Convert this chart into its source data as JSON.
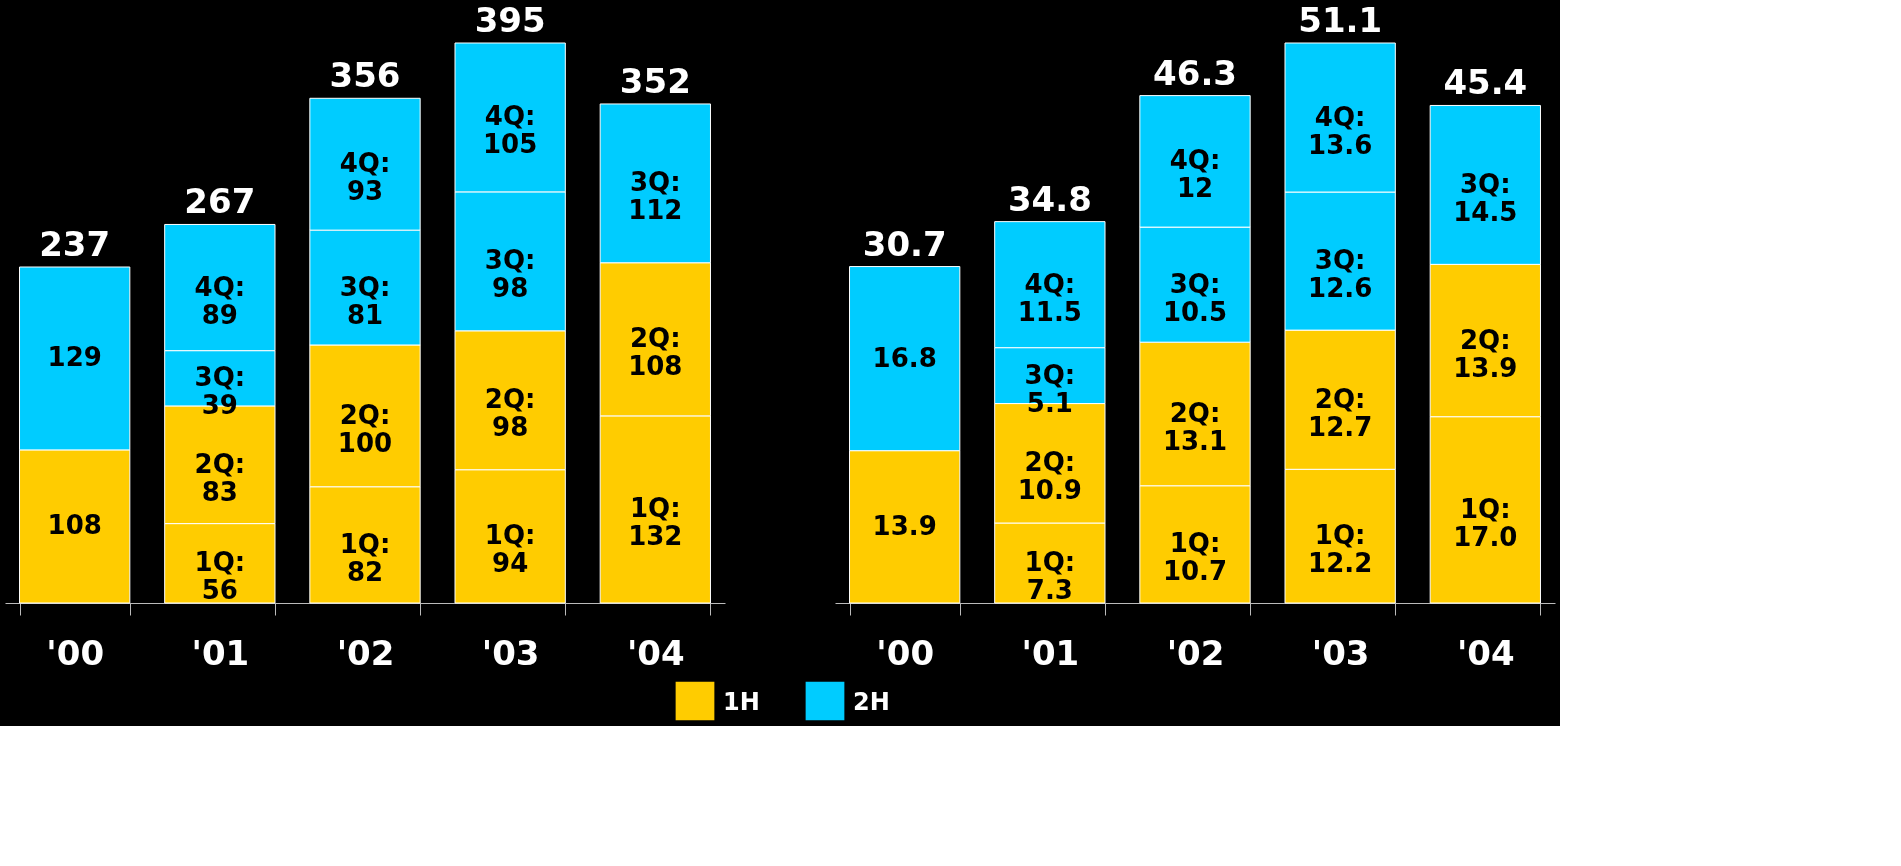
{
  "chart_data": [
    {
      "type": "bar",
      "stacked": true,
      "categories": [
        "'00",
        "'01",
        "'02",
        "'03",
        "'04"
      ],
      "legend": "bottom",
      "series": [
        {
          "name": "1H",
          "color": "#ffcc00",
          "values": [
            108,
            56,
            82,
            94,
            132
          ],
          "value_labels": [
            "108",
            "1Q: 56",
            "1Q: 82",
            "1Q: 94",
            "1Q: 132"
          ]
        },
        {
          "color": "#ffcc00",
          "values": [
            null,
            83,
            100,
            98,
            108
          ],
          "value_labels": [
            null,
            "2Q: 83",
            "2Q: 100",
            "2Q: 98",
            "2Q: 108"
          ]
        },
        {
          "name": "2H",
          "color": "#00ccff",
          "values": [
            129,
            39,
            81,
            98,
            112
          ],
          "value_labels": [
            "129",
            "3Q: 39",
            "3Q: 81",
            "3Q: 98",
            "3Q: 112"
          ]
        },
        {
          "color": "#00ccff",
          "values": [
            null,
            89,
            93,
            105,
            null
          ],
          "value_labels": [
            null,
            "4Q: 89",
            "4Q: 93",
            "4Q: 105",
            null
          ]
        }
      ],
      "totals": [
        "237",
        "267",
        "356",
        "395",
        "352"
      ]
    },
    {
      "type": "bar",
      "stacked": true,
      "categories": [
        "'00",
        "'01",
        "'02",
        "'03",
        "'04"
      ],
      "series": [
        {
          "color": "#ffcc00",
          "values": [
            13.9,
            7.3,
            10.7,
            12.2,
            17.0
          ],
          "value_labels": [
            "13.9",
            "1Q: 7.3",
            "1Q: 10.7",
            "1Q: 12.2",
            "1Q: 17.0"
          ]
        },
        {
          "color": "#ffcc00",
          "values": [
            null,
            10.9,
            13.1,
            12.7,
            13.9
          ],
          "value_labels": [
            null,
            "2Q: 10.9",
            "2Q: 13.1",
            "2Q: 12.7",
            "2Q: 13.9"
          ]
        },
        {
          "color": "#00ccff",
          "values": [
            16.8,
            5.1,
            10.5,
            12.6,
            14.5
          ],
          "value_labels": [
            "16.8",
            "3Q: 5.1",
            "3Q: 10.5",
            "3Q: 12.6",
            "3Q: 14.5"
          ]
        },
        {
          "color": "#00ccff",
          "values": [
            null,
            11.5,
            12,
            13.6,
            null
          ],
          "value_labels": [
            null,
            "4Q: 11.5",
            "4Q: 12",
            "4Q: 13.6",
            null
          ]
        }
      ],
      "totals": [
        "30.7",
        "34.8",
        "46.3",
        "51.1",
        "45.4"
      ]
    }
  ]
}
